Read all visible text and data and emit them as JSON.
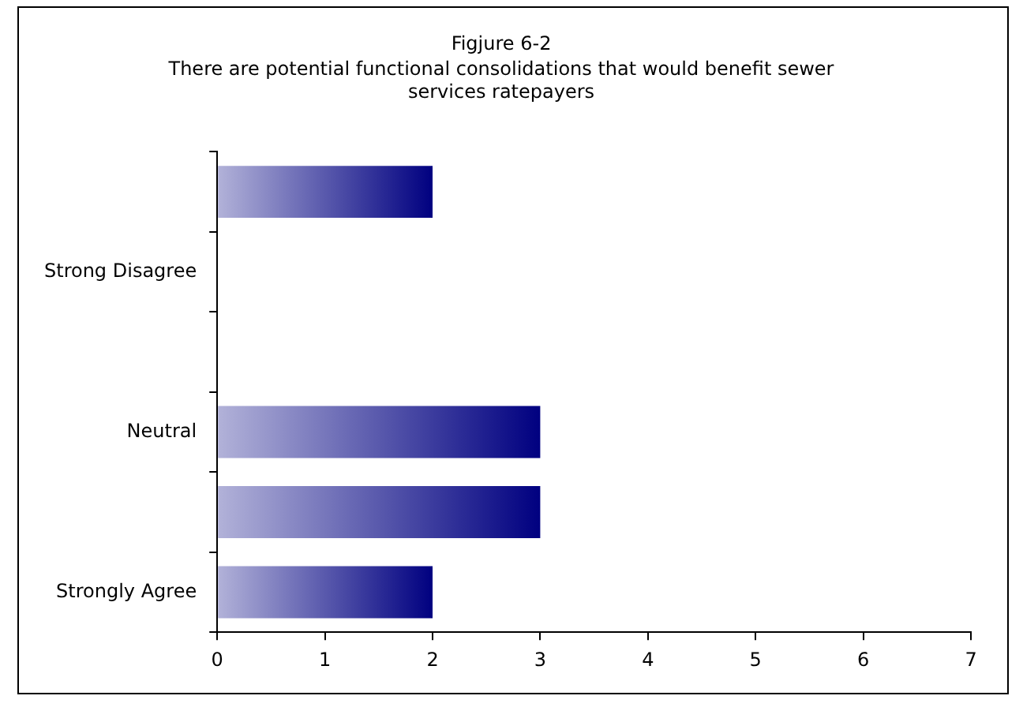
{
  "chart_data": {
    "type": "bar",
    "orientation": "horizontal",
    "title": "Figjure 6-2",
    "subtitle": "There are potential functional consolidations that would benefit sewer services ratepayers",
    "categories": [
      null,
      "Strong Disagree",
      null,
      "Neutral",
      null,
      "Strongly Agree"
    ],
    "values": [
      2,
      0,
      0,
      3,
      3,
      2
    ],
    "color": "#000080",
    "xlim": [
      0,
      7
    ],
    "xticks": [
      0,
      1,
      2,
      3,
      4,
      5,
      6,
      7
    ],
    "grid": false,
    "legend": false
  }
}
